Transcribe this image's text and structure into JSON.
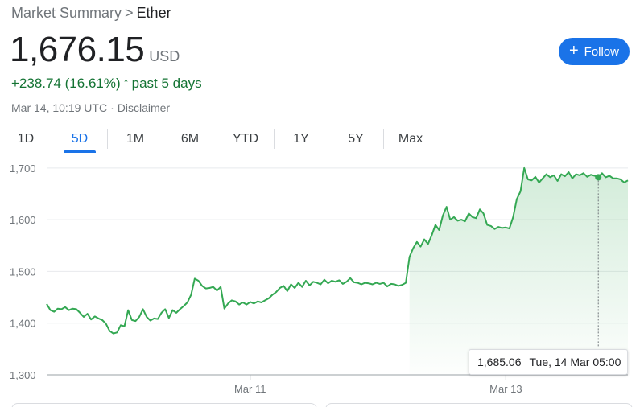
{
  "breadcrumb": {
    "parent": "Market Summary",
    "separator": ">",
    "current": "Ether"
  },
  "quote": {
    "price": "1,676.15",
    "currency": "USD",
    "change": "+238.74 (16.61%)",
    "arrow": "↑",
    "period": "past 5 days",
    "timestamp": "Mar 14, 10:19 UTC",
    "meta_separator": "·",
    "disclaimer": "Disclaimer"
  },
  "follow": {
    "label": "Follow",
    "icon": "plus-icon",
    "plus": "+"
  },
  "tabs": [
    {
      "label": "1D",
      "active": false
    },
    {
      "label": "5D",
      "active": true
    },
    {
      "label": "1M",
      "active": false
    },
    {
      "label": "6M",
      "active": false
    },
    {
      "label": "YTD",
      "active": false
    },
    {
      "label": "1Y",
      "active": false
    },
    {
      "label": "5Y",
      "active": false
    },
    {
      "label": "Max",
      "active": false
    }
  ],
  "tooltip": {
    "value": "1,685.06",
    "date": "Tue, 14 Mar 05:00"
  },
  "colors": {
    "line": "#34a853",
    "positive": "#137333",
    "accent": "#1a73e8"
  },
  "chart_data": {
    "type": "area",
    "ylim": [
      1300,
      1720
    ],
    "y_ticks": [
      {
        "value": 1700,
        "label": "1,700"
      },
      {
        "value": 1600,
        "label": "1,600"
      },
      {
        "value": 1500,
        "label": "1,500"
      },
      {
        "value": 1400,
        "label": "1,400"
      },
      {
        "value": 1300,
        "label": "1,300"
      }
    ],
    "x_ticks": [
      {
        "t": 0.35,
        "label": "Mar 11"
      },
      {
        "t": 0.79,
        "label": "Mar 13"
      }
    ],
    "hover_t": 0.948,
    "values": [
      1437,
      1425,
      1422,
      1428,
      1427,
      1431,
      1425,
      1428,
      1427,
      1420,
      1412,
      1418,
      1407,
      1413,
      1409,
      1406,
      1399,
      1385,
      1380,
      1382,
      1396,
      1394,
      1425,
      1406,
      1404,
      1412,
      1427,
      1412,
      1405,
      1409,
      1408,
      1420,
      1427,
      1410,
      1425,
      1420,
      1427,
      1433,
      1440,
      1455,
      1486,
      1482,
      1472,
      1467,
      1468,
      1470,
      1463,
      1470,
      1428,
      1438,
      1444,
      1442,
      1436,
      1440,
      1436,
      1441,
      1438,
      1442,
      1440,
      1444,
      1448,
      1455,
      1460,
      1468,
      1472,
      1462,
      1475,
      1468,
      1478,
      1470,
      1482,
      1473,
      1480,
      1478,
      1475,
      1484,
      1477,
      1482,
      1480,
      1483,
      1476,
      1480,
      1487,
      1479,
      1478,
      1475,
      1478,
      1477,
      1475,
      1478,
      1476,
      1478,
      1471,
      1476,
      1475,
      1472,
      1474,
      1478,
      1528,
      1545,
      1557,
      1548,
      1562,
      1553,
      1570,
      1590,
      1580,
      1608,
      1625,
      1600,
      1605,
      1598,
      1600,
      1597,
      1612,
      1605,
      1603,
      1620,
      1612,
      1590,
      1588,
      1582,
      1586,
      1584,
      1585,
      1583,
      1605,
      1640,
      1655,
      1700,
      1678,
      1676,
      1683,
      1672,
      1680,
      1688,
      1682,
      1686,
      1675,
      1688,
      1684,
      1692,
      1680,
      1688,
      1686,
      1690,
      1683,
      1687,
      1685,
      1682,
      1690,
      1682,
      1685,
      1680,
      1680,
      1678,
      1672,
      1676
    ]
  }
}
